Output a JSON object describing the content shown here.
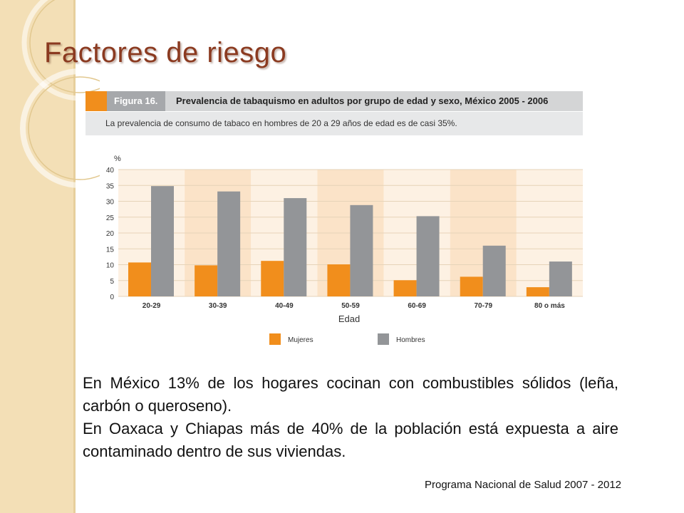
{
  "slide": {
    "title": "Factores de riesgo",
    "figure_label": "Figura 16.",
    "figure_title": "Prevalencia de tabaquismo en adultos por grupo de edad y sexo, México 2005 - 2006",
    "figure_subtitle": "La prevalencia de consumo de tabaco en hombres de 20 a 29 años de edad es de casi 35%.",
    "paragraphs": [
      "En México 13% de los hogares cocinan con combustibles sólidos (leña, carbón o queroseno).",
      "En Oaxaca y Chiapas más de 40% de la población está expuesta a aire contaminado dentro de sus viviendas."
    ],
    "source": "Programa Nacional de Salud 2007 - 2012"
  },
  "colors": {
    "mujeres": "#f18e1c",
    "hombres": "#939598",
    "band_light": "#fdf1e3",
    "band_dark": "#fbe3c8",
    "title": "#8b3a20"
  },
  "chart_data": {
    "type": "bar",
    "ylabel": "%",
    "xlabel": "Edad",
    "ylim": [
      0,
      40
    ],
    "yticks": [
      "0",
      "5",
      "10",
      "15",
      "20",
      "25",
      "30",
      "35",
      "40"
    ],
    "categories": [
      "20-29",
      "30-39",
      "40-49",
      "50-59",
      "60-69",
      "70-79",
      "80 o más"
    ],
    "series": [
      {
        "name": "Mujeres",
        "values": [
          10.7,
          9.8,
          11.2,
          10.1,
          5.1,
          6.2,
          2.9
        ]
      },
      {
        "name": "Hombres",
        "values": [
          34.8,
          33.1,
          31.0,
          28.8,
          25.3,
          16.0,
          11.0
        ]
      }
    ],
    "grid": true,
    "legend": "bottom"
  }
}
